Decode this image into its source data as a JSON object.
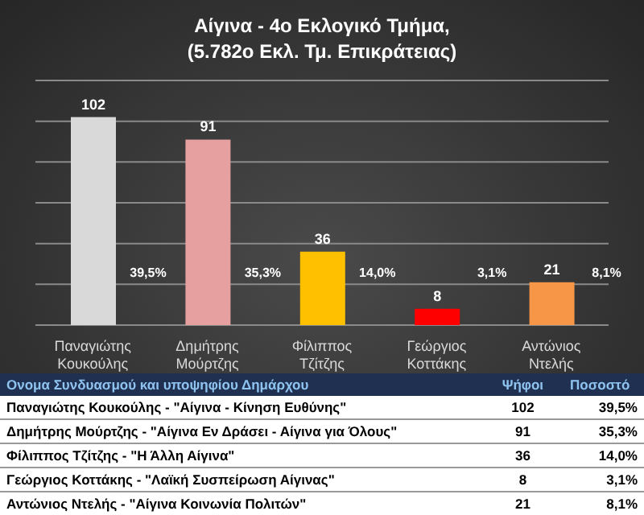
{
  "chart_data": {
    "type": "bar",
    "title": "Αίγινα - 4ο Εκλογικό Τμήμα,\n(5.782ο Εκλ. Τμ. Επικράτειας)",
    "categories": [
      "Παναγιώτης Κουκούλης",
      "Δημήτρης Μούρτζης",
      "Φίλιππος Τζίτζης",
      "Γεώργιος Κοττάκης",
      "Αντώνιος Ντελής"
    ],
    "values": [
      102,
      91,
      36,
      8,
      21
    ],
    "colors": [
      "#d9d9d9",
      "#e6a0a0",
      "#ffc000",
      "#ff0000",
      "#f79646"
    ],
    "data_labels": true,
    "ylim": [
      0,
      120
    ],
    "yticks": [
      {
        "value": 0,
        "label": null
      },
      {
        "value": 20,
        "label": null
      },
      {
        "value": 40,
        "label": null
      },
      {
        "value": 60,
        "label": null
      },
      {
        "value": 80,
        "label": null
      },
      {
        "value": 100,
        "label": null
      },
      {
        "value": 120,
        "label": null
      }
    ],
    "tick_labels": "x",
    "grid": "y",
    "annotations": [
      "39,5%",
      "35,3%",
      "14,0%",
      "3,1%",
      "8,1%",
      "Ονομα Συνδυασμού και υποψηφίου Δημάρχου",
      "Ψήφοι",
      "Ποσοστό",
      "Παναγιώτης Κουκούλης - \"Αίγινα - Κίνηση Ευθύνης\"",
      "Δημήτρης Μούρτζης - \"Αίγινα  Εν Δράσει - Αίγινα για Όλους\"",
      "Φίλιππος Τζίτζης - \"Η Άλλη Αίγινα\"",
      "Γεώργιος Κοττάκης - \"Λαϊκή Συσπείρωση Αίγινας\"",
      "Αντώνιος Ντελής - \"Αίγινα Κοινωνία Πολιτών\"",
      "102",
      "91",
      "36",
      "8",
      "21"
    ]
  }
}
